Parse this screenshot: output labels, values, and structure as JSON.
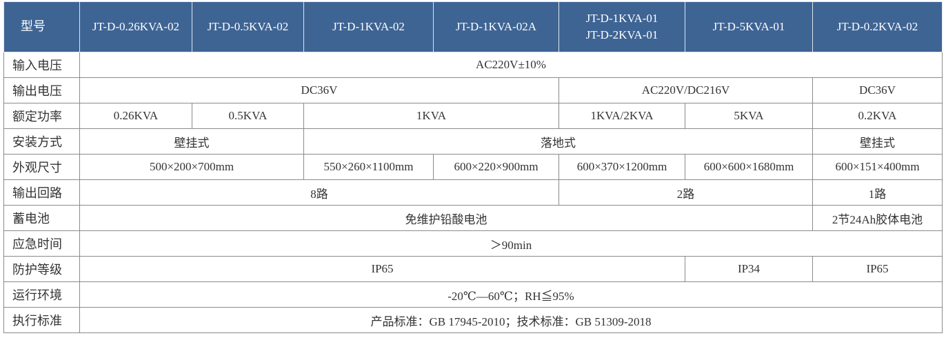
{
  "table": {
    "header": {
      "label": "型号",
      "models": [
        "JT-D-0.26KVA-02",
        "JT-D-0.5KVA-02",
        "JT-D-1KVA-02",
        "JT-D-1KVA-02A",
        [
          "JT-D-1KVA-01",
          "JT-D-2KVA-01"
        ],
        "JT-D-5KVA-01",
        "JT-D-0.2KVA-02"
      ]
    },
    "rows": [
      [
        "输入电压",
        "AC220V±10%"
      ],
      [
        "输出电压",
        "DC36V",
        "AC220V/DC216V",
        "DC36V"
      ],
      [
        "额定功率",
        "0.26KVA",
        "0.5KVA",
        "1KVA",
        "1KVA/2KVA",
        "5KVA",
        "0.2KVA"
      ],
      [
        "安装方式",
        "壁挂式",
        "落地式",
        "壁挂式"
      ],
      [
        "外观尺寸",
        "500×200×700mm",
        "550×260×1100mm",
        "600×220×900mm",
        "600×370×1200mm",
        "600×600×1680mm",
        "600×151×400mm"
      ],
      [
        "输出回路",
        "8路",
        "2路",
        "1路"
      ],
      [
        "蓄电池",
        "免维护铅酸电池",
        "2节24Ah胶体电池"
      ],
      [
        "应急时间",
        "＞90min"
      ],
      [
        "防护等级",
        "IP65",
        "IP34",
        "IP65"
      ],
      [
        "运行环境",
        "-20℃—60℃；RH≦95%"
      ],
      [
        "执行标准",
        "产品标准：GB 17945-2010；技术标准：GB 51309-2018"
      ]
    ]
  }
}
